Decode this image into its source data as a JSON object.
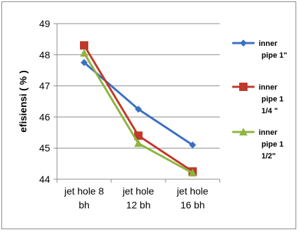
{
  "chart_data": {
    "type": "line",
    "title": "",
    "xlabel": "",
    "ylabel": "efisiensi ( % )",
    "ylim": [
      44,
      49
    ],
    "yticks": [
      "44",
      "45",
      "46",
      "47",
      "48",
      "49"
    ],
    "grid": true,
    "legend_position": "right",
    "categories": [
      [
        "jet hole  8",
        "bh"
      ],
      [
        "jet hole",
        "12 bh"
      ],
      [
        "jet hole",
        "16 bh"
      ]
    ],
    "series": [
      {
        "name": [
          "inner",
          "pipe 1\""
        ],
        "color": "#3a6fc4",
        "marker": "diamond",
        "values": [
          47.75,
          46.25,
          45.1
        ]
      },
      {
        "name": [
          "inner",
          "pipe 1",
          "1/4 \""
        ],
        "color": "#c0392b",
        "marker": "square",
        "values": [
          48.3,
          45.4,
          44.25
        ]
      },
      {
        "name": [
          "inner",
          "pipe 1",
          "1/2\""
        ],
        "color": "#8db53f",
        "marker": "triangle",
        "values": [
          48.05,
          45.15,
          44.2
        ]
      }
    ]
  }
}
